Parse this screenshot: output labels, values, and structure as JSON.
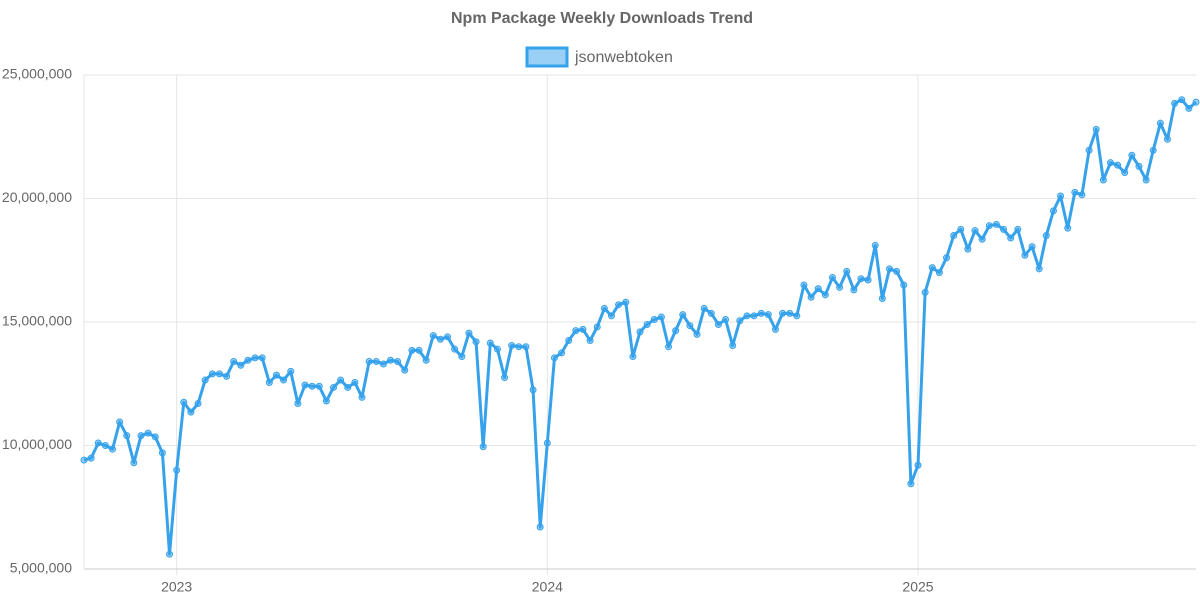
{
  "chart_data": {
    "type": "line",
    "title": "Npm Package Weekly Downloads Trend",
    "categories": [
      null,
      null,
      null,
      null,
      null,
      null,
      null,
      null,
      null,
      null,
      null,
      null,
      null,
      "2023",
      null,
      null,
      null,
      null,
      null,
      null,
      null,
      null,
      null,
      null,
      null,
      null,
      null,
      null,
      null,
      null,
      null,
      null,
      null,
      null,
      null,
      null,
      null,
      null,
      null,
      null,
      null,
      null,
      null,
      null,
      null,
      null,
      null,
      null,
      null,
      null,
      null,
      null,
      null,
      null,
      null,
      null,
      null,
      null,
      null,
      null,
      null,
      null,
      null,
      null,
      null,
      "2024",
      null,
      null,
      null,
      null,
      null,
      null,
      null,
      null,
      null,
      null,
      null,
      null,
      null,
      null,
      null,
      null,
      null,
      null,
      null,
      null,
      null,
      null,
      null,
      null,
      null,
      null,
      null,
      null,
      null,
      null,
      null,
      null,
      null,
      null,
      null,
      null,
      null,
      null,
      null,
      null,
      null,
      null,
      null,
      null,
      null,
      null,
      null,
      null,
      null,
      null,
      null,
      "2025",
      null,
      null,
      null,
      null,
      null,
      null,
      null,
      null,
      null,
      null,
      null,
      null,
      null,
      null,
      null,
      null,
      null,
      null,
      null,
      null,
      null,
      null,
      null,
      null,
      null,
      null,
      null,
      null,
      null,
      null,
      null,
      null,
      null,
      null,
      null,
      null,
      null,
      null,
      null
    ],
    "series": [
      {
        "name": "jsonwebtoken",
        "color": "#36a2eb",
        "values": [
          9410000,
          9490000,
          10100000,
          10000000,
          9850000,
          10950000,
          10400000,
          9300000,
          10400000,
          10500000,
          10350000,
          9700000,
          5600000,
          9000000,
          11750000,
          11350000,
          11700000,
          12650000,
          12900000,
          12900000,
          12800000,
          13400000,
          13250000,
          13450000,
          13550000,
          13550000,
          12550000,
          12850000,
          12650000,
          13000000,
          11700000,
          12450000,
          12400000,
          12400000,
          11800000,
          12350000,
          12650000,
          12350000,
          12550000,
          11950000,
          13400000,
          13400000,
          13300000,
          13450000,
          13400000,
          13050000,
          13850000,
          13850000,
          13450000,
          14450000,
          14300000,
          14400000,
          13900000,
          13600000,
          14550000,
          14200000,
          9950000,
          14150000,
          13900000,
          12750000,
          14050000,
          14000000,
          14000000,
          12250000,
          6700000,
          10100000,
          13550000,
          13750000,
          14250000,
          14650000,
          14700000,
          14250000,
          14800000,
          15550000,
          15250000,
          15700000,
          15800000,
          13600000,
          14600000,
          14900000,
          15100000,
          15200000,
          14000000,
          14650000,
          15300000,
          14850000,
          14500000,
          15550000,
          15350000,
          14900000,
          15100000,
          14050000,
          15050000,
          15250000,
          15250000,
          15350000,
          15300000,
          14700000,
          15350000,
          15350000,
          15250000,
          16500000,
          16000000,
          16350000,
          16100000,
          16800000,
          16400000,
          17050000,
          16300000,
          16750000,
          16700000,
          18100000,
          15950000,
          17150000,
          17050000,
          16500000,
          8450000,
          9200000,
          16200000,
          17200000,
          17000000,
          17600000,
          18500000,
          18750000,
          17950000,
          18700000,
          18350000,
          18900000,
          18950000,
          18750000,
          18400000,
          18750000,
          17700000,
          18050000,
          17150000,
          18500000,
          19500000,
          20100000,
          18800000,
          20250000,
          20150000,
          21950000,
          22800000,
          20750000,
          21450000,
          21350000,
          21050000,
          21750000,
          21300000,
          20750000,
          21950000,
          23050000,
          22400000,
          23850000,
          24000000,
          23650000,
          23900000
        ]
      }
    ],
    "ylim": [
      5000000,
      25000000
    ],
    "yticks": [
      {
        "value": 5000000,
        "label": "5,000,000"
      },
      {
        "value": 10000000,
        "label": "10,000,000"
      },
      {
        "value": 15000000,
        "label": "15,000,000"
      },
      {
        "value": 20000000,
        "label": "20,000,000"
      },
      {
        "value": 25000000,
        "label": "25,000,000"
      }
    ],
    "grid": true,
    "legend": "top"
  }
}
